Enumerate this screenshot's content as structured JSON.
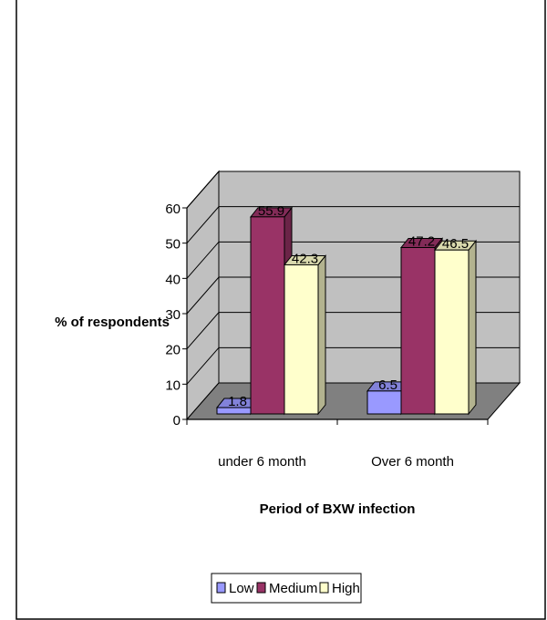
{
  "chart_data": {
    "type": "bar",
    "title": "",
    "xlabel": "Period of BXW infection",
    "ylabel": "% of respondents",
    "categories": [
      "under 6 month",
      "Over 6 month"
    ],
    "series": [
      {
        "name": "Low",
        "values": [
          1.8,
          6.5
        ],
        "color": "#9999ff"
      },
      {
        "name": "Medium",
        "values": [
          55.9,
          47.2
        ],
        "color": "#993366"
      },
      {
        "name": "High",
        "values": [
          42.3,
          46.5
        ],
        "color": "#ffffcc"
      }
    ],
    "data_labels": [
      [
        "1.8",
        "6.5"
      ],
      [
        "55.9",
        "47.2"
      ],
      [
        "42.3",
        "46.5"
      ]
    ],
    "ylim": [
      0,
      60
    ],
    "yticks": [
      0,
      10,
      20,
      30,
      40,
      50,
      60
    ],
    "grid": true,
    "legend": "bottom",
    "wall_color": "#c0c0c0",
    "floor_color": "#808080"
  }
}
